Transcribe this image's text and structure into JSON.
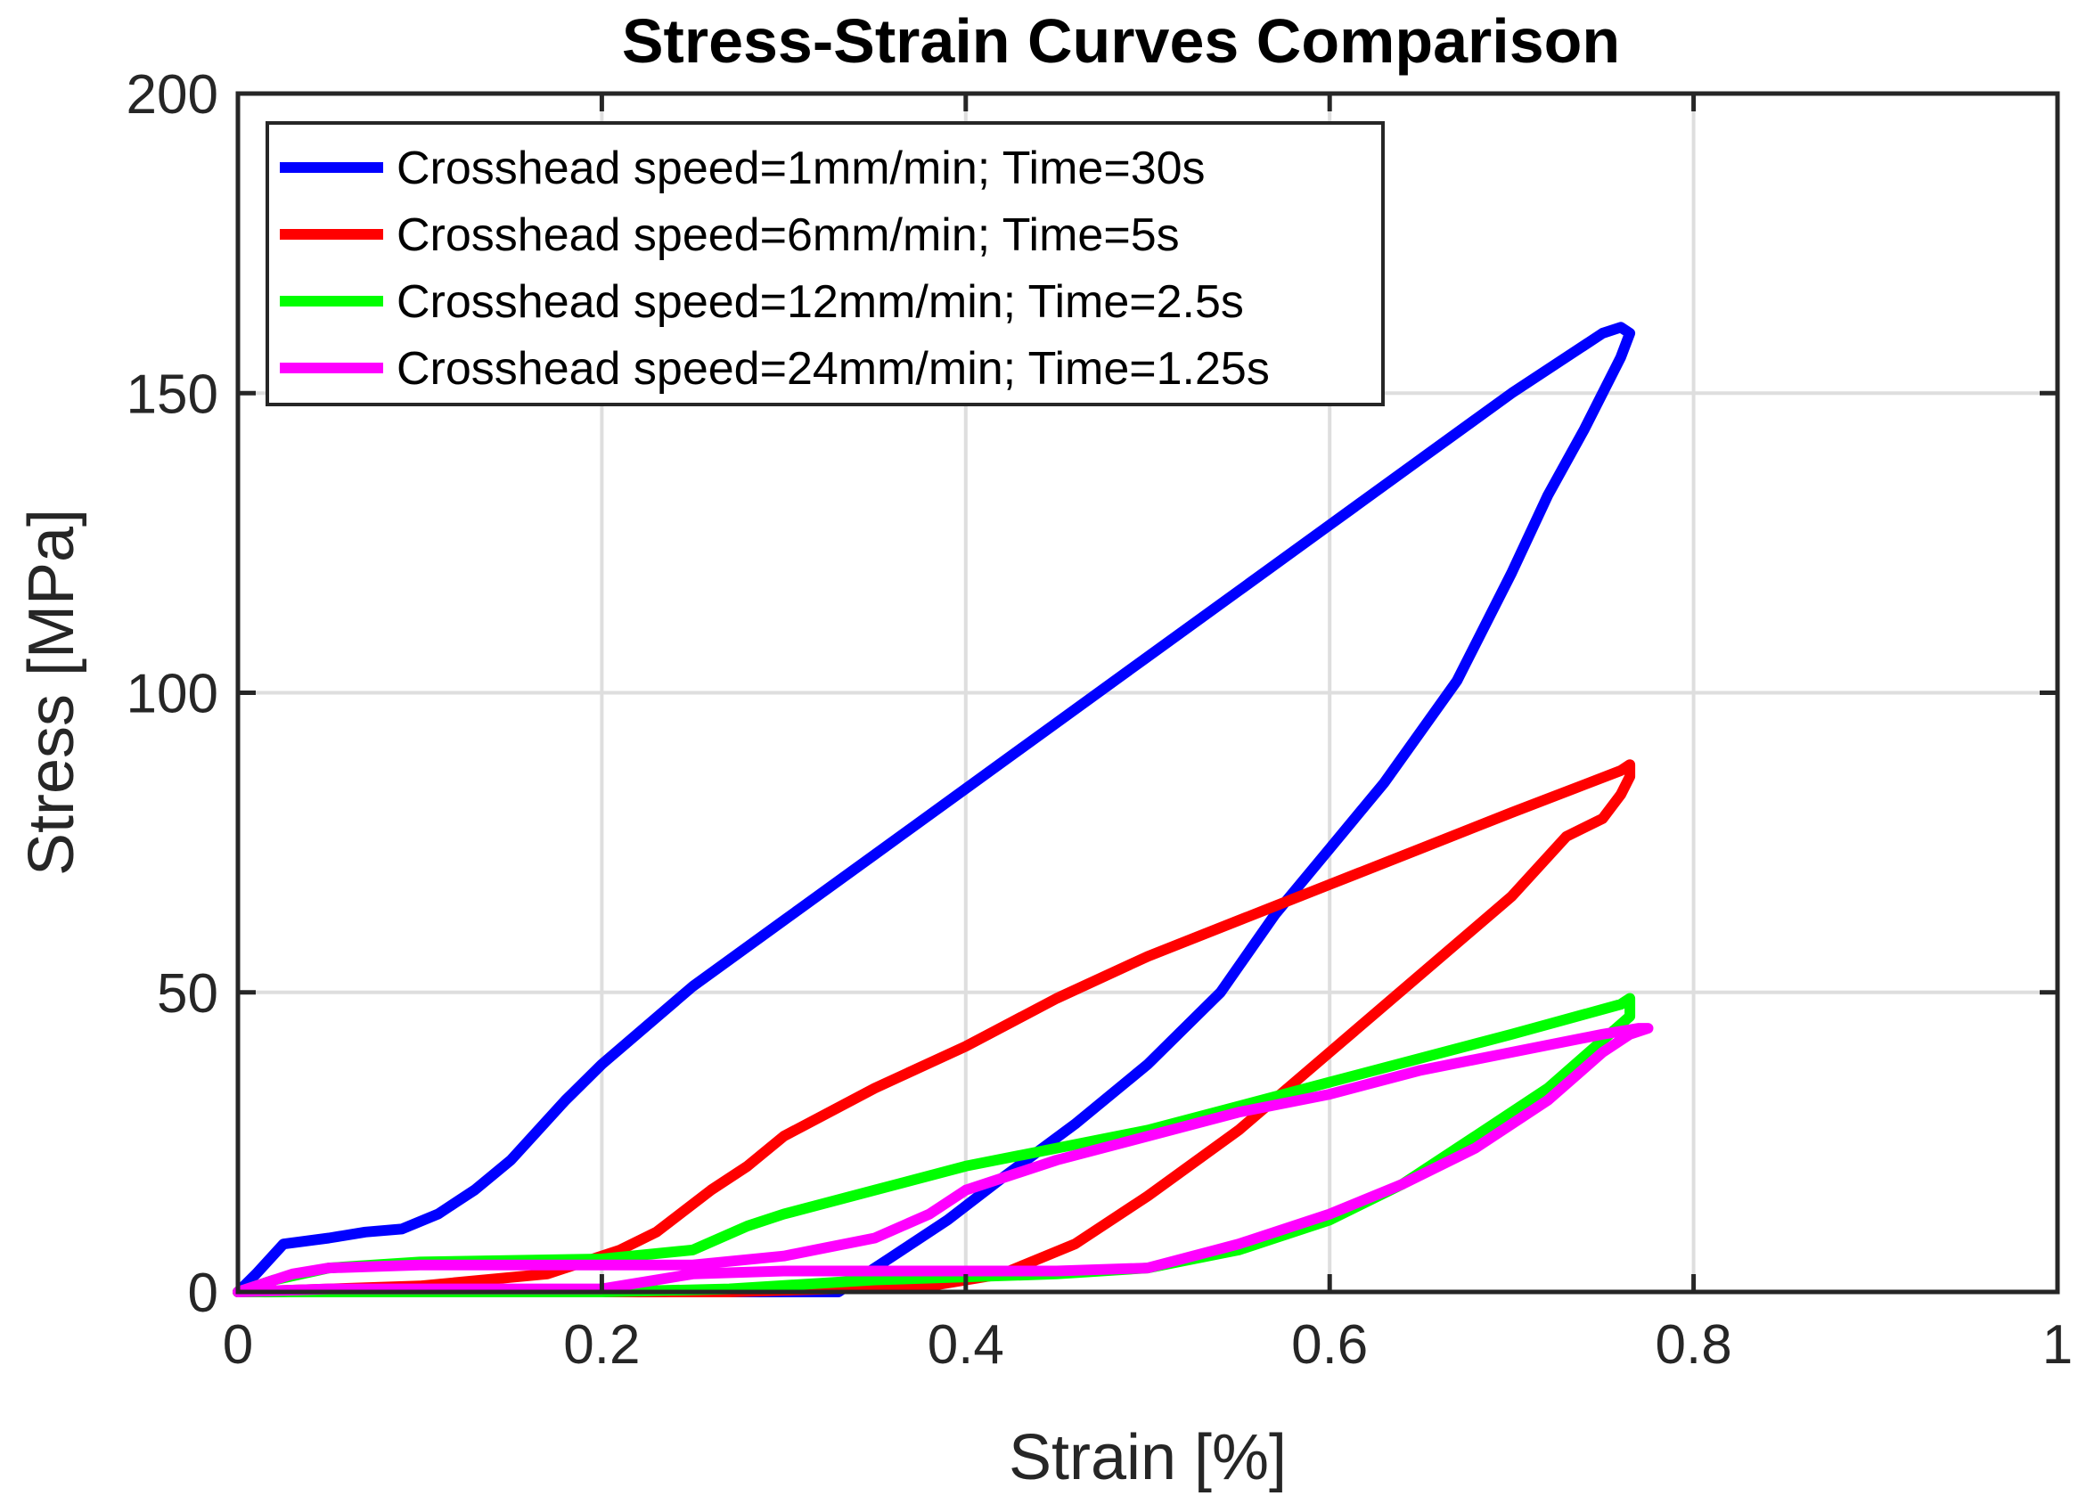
{
  "chart_data": {
    "type": "line",
    "title": "Stress-Strain Curves Comparison",
    "xlabel": "Strain [%]",
    "ylabel": "Stress [MPa]",
    "xlim": [
      0,
      1
    ],
    "ylim": [
      0,
      200
    ],
    "xticks": [
      0,
      0.2,
      0.4,
      0.6,
      0.8,
      1
    ],
    "xtick_labels": [
      "0",
      "0.2",
      "0.4",
      "0.6",
      "0.8",
      "1"
    ],
    "yticks": [
      0,
      50,
      100,
      150,
      200
    ],
    "ytick_labels": [
      "0",
      "50",
      "100",
      "150",
      "200"
    ],
    "grid": true,
    "legend_position": "top-left",
    "series": [
      {
        "name": "Crosshead speed=1mm/min; Time=30s",
        "color": "#0000ff",
        "points": [
          [
            0,
            0
          ],
          [
            0.01,
            3
          ],
          [
            0.025,
            8
          ],
          [
            0.05,
            9
          ],
          [
            0.07,
            10
          ],
          [
            0.09,
            10.5
          ],
          [
            0.11,
            13
          ],
          [
            0.12,
            15
          ],
          [
            0.13,
            17
          ],
          [
            0.15,
            22
          ],
          [
            0.18,
            32
          ],
          [
            0.2,
            38
          ],
          [
            0.25,
            51
          ],
          [
            0.3,
            62
          ],
          [
            0.35,
            73
          ],
          [
            0.4,
            84
          ],
          [
            0.45,
            95
          ],
          [
            0.5,
            106
          ],
          [
            0.55,
            117
          ],
          [
            0.6,
            128
          ],
          [
            0.65,
            139
          ],
          [
            0.7,
            150
          ],
          [
            0.75,
            160
          ],
          [
            0.76,
            161
          ],
          [
            0.765,
            160
          ],
          [
            0.76,
            156
          ],
          [
            0.74,
            144
          ],
          [
            0.72,
            133
          ],
          [
            0.7,
            120
          ],
          [
            0.67,
            102
          ],
          [
            0.63,
            85
          ],
          [
            0.6,
            74
          ],
          [
            0.57,
            63
          ],
          [
            0.54,
            50
          ],
          [
            0.5,
            38
          ],
          [
            0.46,
            28
          ],
          [
            0.42,
            19
          ],
          [
            0.39,
            12
          ],
          [
            0.36,
            6
          ],
          [
            0.34,
            2
          ],
          [
            0.33,
            0
          ],
          [
            0.2,
            0
          ],
          [
            0,
            0
          ]
        ]
      },
      {
        "name": "Crosshead speed=6mm/min; Time=5s",
        "color": "#ff0000",
        "points": [
          [
            0,
            0
          ],
          [
            0.1,
            1
          ],
          [
            0.17,
            3
          ],
          [
            0.21,
            7
          ],
          [
            0.23,
            10
          ],
          [
            0.26,
            17
          ],
          [
            0.28,
            21
          ],
          [
            0.3,
            26
          ],
          [
            0.35,
            34
          ],
          [
            0.4,
            41
          ],
          [
            0.45,
            49
          ],
          [
            0.5,
            56
          ],
          [
            0.55,
            62
          ],
          [
            0.6,
            68
          ],
          [
            0.65,
            74
          ],
          [
            0.7,
            80
          ],
          [
            0.76,
            87
          ],
          [
            0.765,
            88
          ],
          [
            0.765,
            86
          ],
          [
            0.76,
            83
          ],
          [
            0.75,
            79
          ],
          [
            0.73,
            76
          ],
          [
            0.7,
            66
          ],
          [
            0.65,
            53
          ],
          [
            0.6,
            40
          ],
          [
            0.55,
            27
          ],
          [
            0.5,
            16
          ],
          [
            0.46,
            8
          ],
          [
            0.42,
            3
          ],
          [
            0.38,
            1
          ],
          [
            0.27,
            0
          ],
          [
            0.2,
            0
          ],
          [
            0,
            0
          ]
        ]
      },
      {
        "name": "Crosshead speed=12mm/min; Time=2.5s",
        "color": "#00ff00",
        "points": [
          [
            0,
            0
          ],
          [
            0.02,
            2
          ],
          [
            0.05,
            4
          ],
          [
            0.1,
            5
          ],
          [
            0.2,
            5.5
          ],
          [
            0.25,
            7
          ],
          [
            0.28,
            11
          ],
          [
            0.3,
            13
          ],
          [
            0.35,
            17
          ],
          [
            0.4,
            21
          ],
          [
            0.45,
            24
          ],
          [
            0.5,
            27
          ],
          [
            0.55,
            31
          ],
          [
            0.6,
            35
          ],
          [
            0.65,
            39
          ],
          [
            0.7,
            43
          ],
          [
            0.76,
            48
          ],
          [
            0.765,
            49
          ],
          [
            0.765,
            46
          ],
          [
            0.75,
            42
          ],
          [
            0.72,
            34
          ],
          [
            0.68,
            26
          ],
          [
            0.64,
            18
          ],
          [
            0.6,
            12
          ],
          [
            0.55,
            7
          ],
          [
            0.5,
            4
          ],
          [
            0.45,
            3
          ],
          [
            0.35,
            2
          ],
          [
            0.27,
            0.5
          ],
          [
            0.2,
            0
          ],
          [
            0,
            0
          ]
        ]
      },
      {
        "name": "Crosshead speed=24mm/min; Time=1.25s",
        "color": "#ff00ff",
        "points": [
          [
            0,
            0
          ],
          [
            0.03,
            3
          ],
          [
            0.05,
            4
          ],
          [
            0.1,
            4.5
          ],
          [
            0.15,
            4.5
          ],
          [
            0.2,
            4.5
          ],
          [
            0.25,
            4.5
          ],
          [
            0.3,
            6
          ],
          [
            0.35,
            9
          ],
          [
            0.38,
            13
          ],
          [
            0.4,
            17
          ],
          [
            0.45,
            22
          ],
          [
            0.5,
            26
          ],
          [
            0.55,
            30
          ],
          [
            0.6,
            33
          ],
          [
            0.65,
            37
          ],
          [
            0.7,
            40
          ],
          [
            0.75,
            43
          ],
          [
            0.77,
            44
          ],
          [
            0.775,
            44
          ],
          [
            0.765,
            43
          ],
          [
            0.75,
            40
          ],
          [
            0.72,
            32
          ],
          [
            0.68,
            24
          ],
          [
            0.64,
            18
          ],
          [
            0.6,
            13
          ],
          [
            0.55,
            8
          ],
          [
            0.5,
            4
          ],
          [
            0.45,
            3.5
          ],
          [
            0.4,
            3.5
          ],
          [
            0.35,
            3.5
          ],
          [
            0.3,
            3.5
          ],
          [
            0.25,
            3
          ],
          [
            0.2,
            0.5
          ],
          [
            0.15,
            0.5
          ],
          [
            0.1,
            0.5
          ],
          [
            0.05,
            0.5
          ],
          [
            0,
            0
          ]
        ]
      }
    ]
  }
}
